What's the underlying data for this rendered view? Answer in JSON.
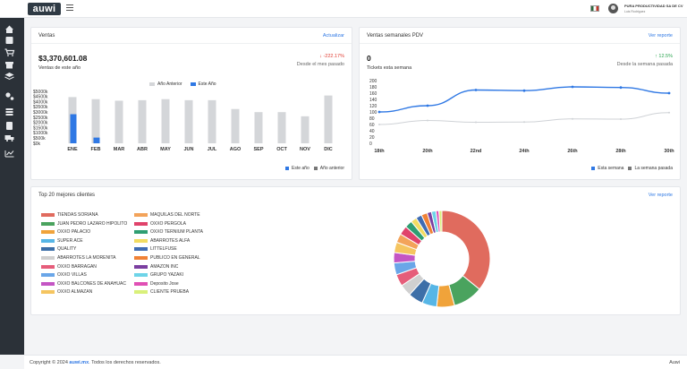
{
  "header": {
    "logo_text": "auwi",
    "company": "PURA PRODUCTIVIDAD SA DE CV",
    "user": "Luis Rodriguez"
  },
  "sidebar": {
    "icons": [
      "home-icon",
      "box-icon",
      "cart-icon",
      "store-icon",
      "layers-icon",
      "gears-icon",
      "stack-icon",
      "calculator-icon",
      "truck-icon",
      "trend-icon"
    ]
  },
  "ventas": {
    "title": "Ventas",
    "link": "Actualizar",
    "amount": "$3,370,601.08",
    "amount_label": "Ventas de este año",
    "delta": "↓ -222.17%",
    "delta_label": "Desde el mes pasado",
    "legend_top": {
      "prev": "Año Anterior",
      "curr": "Este Año"
    },
    "legend_bottom": {
      "curr": "Este año",
      "prev": "Año anterior"
    },
    "colors": {
      "prev": "#d4d6d9",
      "curr": "#2f78e4"
    }
  },
  "semanales": {
    "title": "Ventas semanales PDV",
    "link": "Ver reporte",
    "value": "0",
    "value_label": "Tickets esta semana",
    "delta": "↑ 12.5%",
    "delta_label": "Desde la semana pasada",
    "legend": {
      "curr": "Esta semana",
      "prev": "La semana pasada"
    },
    "colors": {
      "curr": "#2f78e4",
      "prev": "#cfd2d6"
    }
  },
  "clientes": {
    "title": "Top 20 mejores clientes",
    "link": "Ver reporte"
  },
  "footer": {
    "copyright_prefix": "Copyright © 2024",
    "brand": "auwi.mx",
    "rights": ". Todos los derechos reservados.",
    "right": "Auwi"
  },
  "chart_data": [
    {
      "type": "bar",
      "categories": [
        "ENE",
        "FEB",
        "MAR",
        "ABR",
        "MAY",
        "JUN",
        "JUL",
        "AGO",
        "SEP",
        "OCT",
        "NOV",
        "DIC"
      ],
      "y_ticks": [
        "$5000k",
        "$4500k",
        "$4000k",
        "$3500k",
        "$3000k",
        "$2500k",
        "$2000k",
        "$1500k",
        "$1000k",
        "$500k",
        "$0k"
      ],
      "ylim": [
        0,
        5000
      ],
      "series": [
        {
          "name": "Año Anterior",
          "values": [
            4450,
            4250,
            4100,
            4150,
            4250,
            4150,
            4150,
            3300,
            3000,
            3000,
            2600,
            4600
          ]
        },
        {
          "name": "Este Año",
          "values": [
            2800,
            550,
            0,
            0,
            0,
            0,
            0,
            0,
            0,
            0,
            0,
            0
          ]
        }
      ]
    },
    {
      "type": "line",
      "categories": [
        "18th",
        "20th",
        "22nd",
        "24th",
        "26th",
        "28th",
        "30th"
      ],
      "y_ticks": [
        "200",
        "180",
        "160",
        "140",
        "120",
        "100",
        "80",
        "60",
        "40",
        "20",
        "0"
      ],
      "ylim": [
        0,
        200
      ],
      "series": [
        {
          "name": "Esta semana",
          "values": [
            100,
            120,
            170,
            168,
            180,
            178,
            160
          ]
        },
        {
          "name": "La semana pasada",
          "values": [
            60,
            73,
            67,
            68,
            78,
            77,
            98
          ]
        }
      ]
    },
    {
      "type": "pie",
      "labels": [
        "TIENDAS SORIANA",
        "JUAN PEDRO LAZARO HIPOLITO",
        "OXXO PALACIO",
        "SUPER ACE",
        "QUALITY",
        "ABARROTES LA MORENITA",
        "OXXO BARRAGAN",
        "OXXO VILLAS",
        "OXXO BALCONES DE ANAHUAC",
        "OXXO ALMAZAN",
        "MAQUILAS DEL NORTE",
        "OXXO PERGOLA",
        "OXXO TERNIUM PLANTA",
        "ABARROTES ALFA",
        "LITTELFUSE",
        "PUBLICO EN GENERAL",
        "AMAZON INC",
        "GRUPO YAZAKI",
        "Deposito Jose",
        "CLIENTE PRUEBA"
      ],
      "colors": [
        "#e06b5e",
        "#4aa35e",
        "#f0a33a",
        "#57b6e6",
        "#3d6fa8",
        "#d0d0d0",
        "#e65d7a",
        "#6aa6e8",
        "#c455c4",
        "#f5c560",
        "#f3a35a",
        "#e0436b",
        "#2f9e72",
        "#f2dc62",
        "#3f6cb3",
        "#f08236",
        "#7b3fa0",
        "#6ed4e8",
        "#e050b5",
        "#d9f07a"
      ],
      "values": [
        36,
        10,
        6,
        5,
        5,
        4,
        4,
        4,
        3.5,
        3.5,
        3,
        3,
        2.5,
        2,
        2,
        2,
        1.5,
        1.5,
        1,
        1
      ]
    }
  ]
}
